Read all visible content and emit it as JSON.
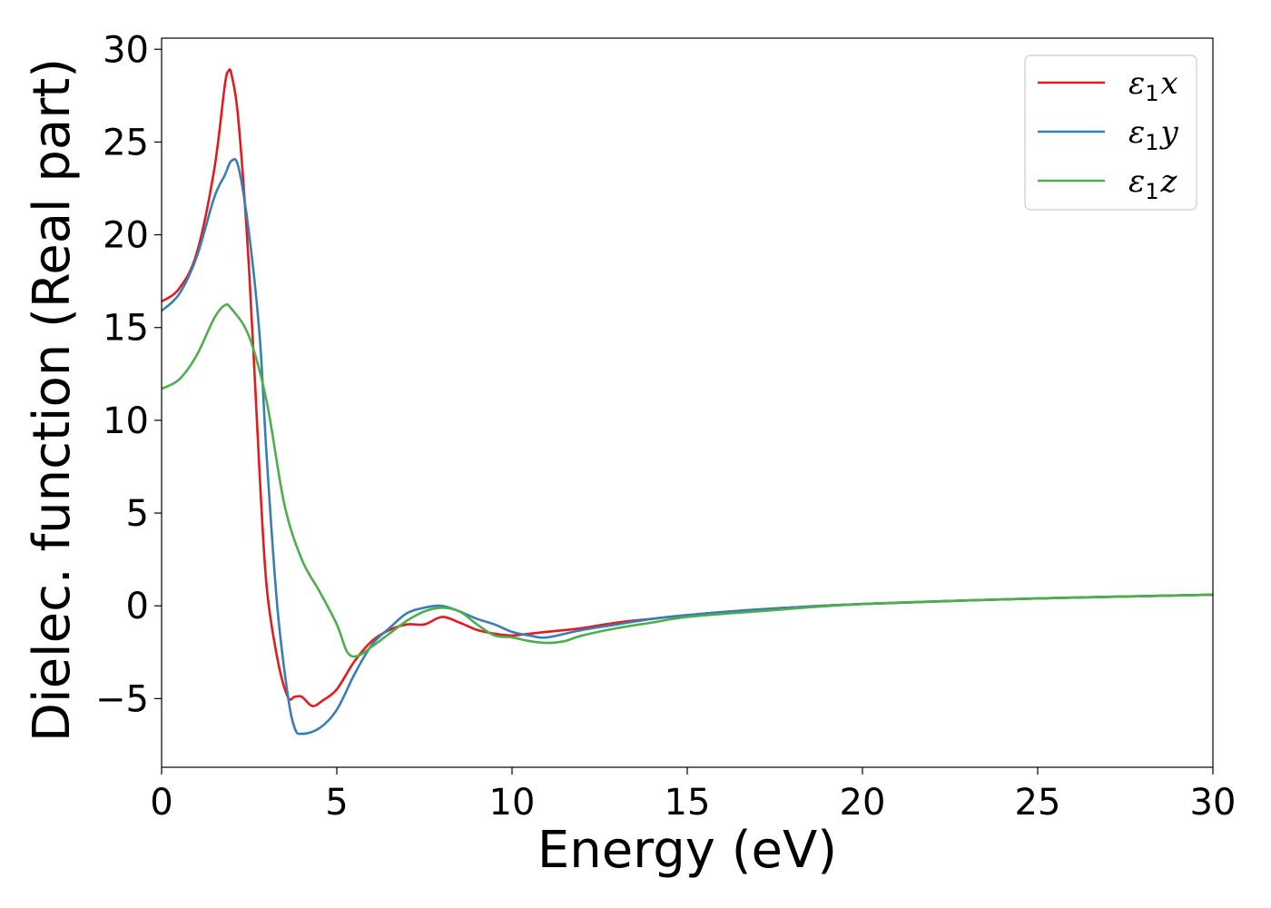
{
  "chart_data": {
    "type": "line",
    "title": "",
    "xlabel": "Energy (eV)",
    "ylabel": "Dielec. function (Real part)",
    "xlim": [
      0,
      30
    ],
    "ylim": [
      -8.7,
      30.6
    ],
    "xticks": [
      0,
      5,
      10,
      15,
      20,
      25,
      30
    ],
    "yticks": [
      -5,
      0,
      5,
      10,
      15,
      20,
      25,
      30
    ],
    "xtick_labels": [
      "0",
      "5",
      "10",
      "15",
      "20",
      "25",
      "30"
    ],
    "ytick_labels": [
      "−5",
      "0",
      "5",
      "10",
      "15",
      "20",
      "25",
      "30"
    ],
    "grid": false,
    "legend_position": "top-right",
    "series": [
      {
        "name": "ε1x",
        "legend_base": "ε",
        "legend_sub": "1",
        "legend_suffix": "x",
        "color": "#e41a1c",
        "x": [
          0,
          0.5,
          1.0,
          1.5,
          1.8,
          1.9,
          2.0,
          2.2,
          2.5,
          2.8,
          3.0,
          3.3,
          3.6,
          3.8,
          4.0,
          4.3,
          4.6,
          5.0,
          5.5,
          6.0,
          6.5,
          7.0,
          7.5,
          8.0,
          8.5,
          9.0,
          9.5,
          10.0,
          10.5,
          11.0,
          12.0,
          13.0,
          14.0,
          15.0,
          17.0,
          20.0,
          25.0,
          30.0
        ],
        "y": [
          16.4,
          17.1,
          19.0,
          23.5,
          28.0,
          28.8,
          28.6,
          26.0,
          18.0,
          7.0,
          1.0,
          -2.8,
          -4.9,
          -4.9,
          -4.9,
          -5.4,
          -5.1,
          -4.5,
          -3.0,
          -1.9,
          -1.3,
          -1.0,
          -1.0,
          -0.6,
          -0.9,
          -1.3,
          -1.5,
          -1.6,
          -1.5,
          -1.4,
          -1.2,
          -0.9,
          -0.7,
          -0.5,
          -0.2,
          0.1,
          0.4,
          0.6
        ]
      },
      {
        "name": "ε1y",
        "legend_base": "ε",
        "legend_sub": "1",
        "legend_suffix": "y",
        "color": "#377eb8",
        "x": [
          0,
          0.5,
          1.0,
          1.5,
          1.8,
          2.0,
          2.2,
          2.5,
          2.8,
          3.0,
          3.3,
          3.6,
          3.8,
          4.0,
          4.5,
          5.0,
          5.5,
          6.0,
          6.5,
          7.0,
          7.5,
          8.0,
          8.5,
          9.0,
          9.5,
          10.0,
          10.5,
          11.0,
          12.0,
          13.0,
          14.0,
          15.0,
          17.0,
          20.0,
          25.0,
          30.0
        ],
        "y": [
          15.9,
          16.8,
          18.8,
          22.0,
          23.2,
          24.0,
          23.6,
          20.0,
          14.5,
          8.0,
          0.0,
          -4.8,
          -6.6,
          -6.9,
          -6.6,
          -5.6,
          -3.7,
          -2.1,
          -1.2,
          -0.4,
          -0.1,
          0.0,
          -0.3,
          -0.7,
          -1.0,
          -1.4,
          -1.6,
          -1.7,
          -1.3,
          -1.0,
          -0.7,
          -0.5,
          -0.2,
          0.1,
          0.4,
          0.6
        ]
      },
      {
        "name": "ε1z",
        "legend_base": "ε",
        "legend_sub": "1",
        "legend_suffix": "z",
        "color": "#4daf4a",
        "x": [
          0,
          0.5,
          1.0,
          1.5,
          1.8,
          2.0,
          2.5,
          3.0,
          3.5,
          4.0,
          4.5,
          5.0,
          5.3,
          5.6,
          6.0,
          6.5,
          7.0,
          7.5,
          8.0,
          8.5,
          9.0,
          9.5,
          10.0,
          10.5,
          11.0,
          11.5,
          12.0,
          13.0,
          14.0,
          15.0,
          17.0,
          20.0,
          25.0,
          30.0
        ],
        "y": [
          11.7,
          12.2,
          13.5,
          15.5,
          16.2,
          16.0,
          14.5,
          11.0,
          5.5,
          2.5,
          0.8,
          -1.0,
          -2.5,
          -2.7,
          -2.2,
          -1.5,
          -0.8,
          -0.3,
          -0.1,
          -0.3,
          -1.0,
          -1.6,
          -1.7,
          -1.9,
          -2.0,
          -1.9,
          -1.6,
          -1.2,
          -0.9,
          -0.6,
          -0.3,
          0.1,
          0.4,
          0.6
        ]
      }
    ]
  }
}
